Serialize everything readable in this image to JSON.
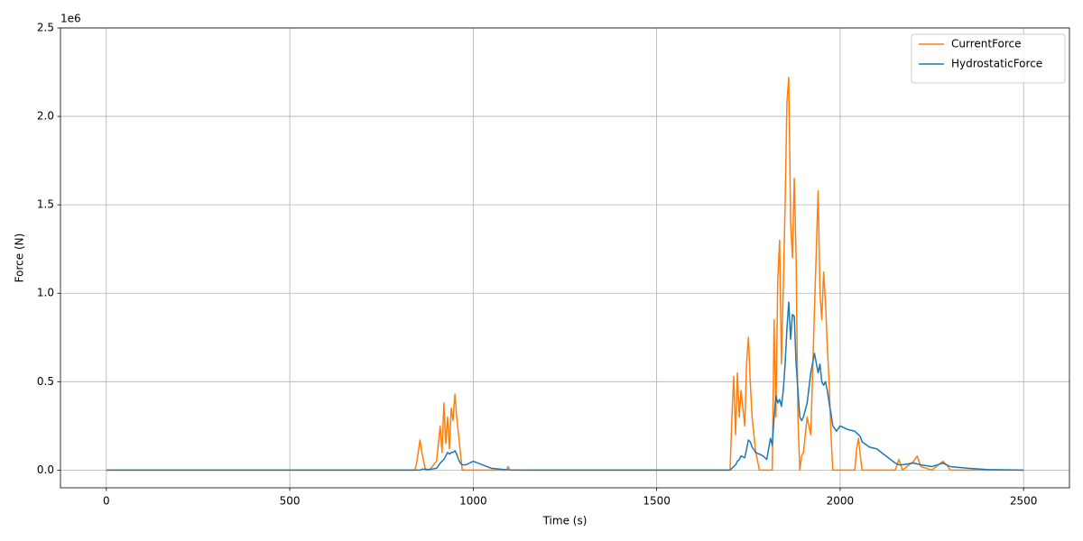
{
  "chart_data": {
    "type": "line",
    "xlabel": "Time (s)",
    "ylabel": "Force (N)",
    "y_offset_label": "1e6",
    "xlim": [
      -125,
      2625
    ],
    "ylim": [
      -0.1,
      2.5
    ],
    "xticks": [
      0,
      500,
      1000,
      1500,
      2000,
      2500
    ],
    "yticks": [
      {
        "value": 0,
        "label": "0.0"
      },
      0.5,
      {
        "value": 1,
        "label": "1.0"
      },
      1.5,
      {
        "value": 2,
        "label": "2.0"
      },
      2.5
    ],
    "grid": true,
    "legend": "upper right",
    "x": [
      0,
      500,
      840,
      845,
      850,
      855,
      860,
      870,
      880,
      900,
      910,
      915,
      920,
      925,
      930,
      935,
      940,
      945,
      950,
      955,
      960,
      965,
      970,
      980,
      1000,
      1050,
      1090,
      1095,
      1100,
      1150,
      1500,
      1700,
      1705,
      1710,
      1715,
      1720,
      1725,
      1730,
      1740,
      1745,
      1750,
      1755,
      1760,
      1770,
      1780,
      1790,
      1800,
      1810,
      1815,
      1820,
      1825,
      1830,
      1835,
      1840,
      1845,
      1850,
      1855,
      1860,
      1865,
      1870,
      1875,
      1880,
      1885,
      1890,
      1895,
      1900,
      1910,
      1920,
      1930,
      1940,
      1945,
      1950,
      1955,
      1960,
      1965,
      1970,
      1975,
      1980,
      1990,
      2000,
      2020,
      2040,
      2045,
      2050,
      2055,
      2060,
      2080,
      2100,
      2150,
      2160,
      2170,
      2200,
      2210,
      2220,
      2250,
      2280,
      2290,
      2300,
      2350,
      2400,
      2500
    ],
    "series": [
      {
        "name": "CurrentForce",
        "color": "#ff7f0e",
        "values": [
          0,
          0,
          0,
          0.03,
          0.1,
          0.17,
          0.1,
          0,
          0,
          0.05,
          0.25,
          0.1,
          0.38,
          0.15,
          0.3,
          0.12,
          0.35,
          0.28,
          0.43,
          0.3,
          0.2,
          0.1,
          0,
          0,
          0,
          0,
          0,
          0.02,
          0,
          0,
          0,
          0,
          0.3,
          0.53,
          0.2,
          0.55,
          0.3,
          0.45,
          0.25,
          0.6,
          0.75,
          0.5,
          0.3,
          0.1,
          0,
          0,
          0,
          0,
          0,
          0.85,
          0.3,
          1.08,
          1.3,
          0.6,
          1.03,
          1.5,
          2.08,
          2.22,
          1.4,
          1.2,
          1.65,
          1.2,
          0.3,
          0,
          0.08,
          0.1,
          0.3,
          0.2,
          0.9,
          1.58,
          1.0,
          0.85,
          1.12,
          0.95,
          0.7,
          0.5,
          0.2,
          0,
          0,
          0,
          0,
          0,
          0.12,
          0.18,
          0.08,
          0,
          0,
          0,
          0,
          0.06,
          0,
          0.05,
          0.08,
          0.02,
          0,
          0.05,
          0.03,
          0,
          0,
          0,
          0
        ]
      },
      {
        "name": "HydrostaticForce",
        "color": "#1f77b4",
        "values": [
          0,
          0,
          0,
          0,
          0,
          0,
          0.005,
          0.005,
          0.003,
          0.01,
          0.04,
          0.05,
          0.06,
          0.08,
          0.1,
          0.09,
          0.1,
          0.1,
          0.11,
          0.09,
          0.06,
          0.04,
          0.03,
          0.03,
          0.05,
          0.01,
          0.002,
          0.002,
          0.001,
          0,
          0,
          0,
          0.01,
          0.02,
          0.03,
          0.05,
          0.06,
          0.08,
          0.07,
          0.12,
          0.17,
          0.16,
          0.13,
          0.1,
          0.09,
          0.08,
          0.06,
          0.18,
          0.14,
          0.3,
          0.42,
          0.38,
          0.4,
          0.36,
          0.45,
          0.6,
          0.8,
          0.95,
          0.74,
          0.88,
          0.87,
          0.6,
          0.45,
          0.3,
          0.28,
          0.3,
          0.38,
          0.55,
          0.66,
          0.55,
          0.6,
          0.5,
          0.48,
          0.5,
          0.45,
          0.38,
          0.32,
          0.25,
          0.22,
          0.25,
          0.23,
          0.22,
          0.21,
          0.2,
          0.19,
          0.16,
          0.13,
          0.12,
          0.04,
          0.03,
          0.03,
          0.04,
          0.035,
          0.03,
          0.02,
          0.04,
          0.03,
          0.02,
          0.01,
          0.003,
          0
        ]
      }
    ]
  }
}
